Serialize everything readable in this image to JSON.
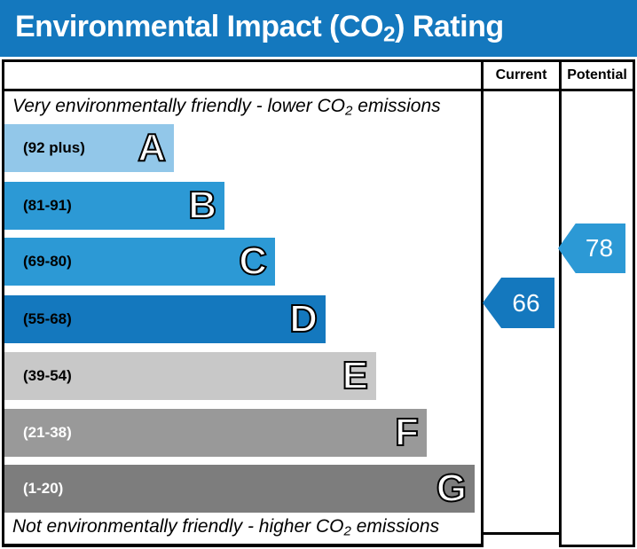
{
  "ui": {
    "header_blue": "#1478BE",
    "border_black": "#000000"
  },
  "title": {
    "prefix": "Environmental Impact (CO",
    "sub": "2",
    "suffix": ") Rating"
  },
  "columns": {
    "current": "Current",
    "potential": "Potential"
  },
  "captions": {
    "top": {
      "prefix": "Very environmentally friendly - lower CO",
      "sub": "2",
      "suffix": " emissions"
    },
    "bottom": {
      "prefix": "Not environmentally friendly - higher CO",
      "sub": "2",
      "suffix": " emissions"
    }
  },
  "bands": [
    {
      "letter": "A",
      "range": "(92 plus)",
      "color": "#92C7E9",
      "text_color": "#000000"
    },
    {
      "letter": "B",
      "range": "(81-91)",
      "color": "#2C99D5",
      "text_color": "#000000"
    },
    {
      "letter": "C",
      "range": "(69-80)",
      "color": "#2C99D5",
      "text_color": "#000000"
    },
    {
      "letter": "D",
      "range": "(55-68)",
      "color": "#1478BE",
      "text_color": "#000000"
    },
    {
      "letter": "E",
      "range": "(39-54)",
      "color": "#C8C8C8",
      "text_color": "#000000"
    },
    {
      "letter": "F",
      "range": "(21-38)",
      "color": "#999999",
      "text_color": "#FFFFFF"
    },
    {
      "letter": "G",
      "range": "(1-20)",
      "color": "#7D7D7D",
      "text_color": "#FFFFFF"
    }
  ],
  "ratings": {
    "current": {
      "value": "66",
      "band": "D",
      "color": "#1478BE"
    },
    "potential": {
      "value": "78",
      "band": "C",
      "color": "#2C99D5"
    }
  },
  "chart_data": {
    "type": "bar",
    "title": "Environmental Impact (CO2) Rating",
    "categories": [
      "A",
      "B",
      "C",
      "D",
      "E",
      "F",
      "G"
    ],
    "band_ranges": [
      "92 plus",
      "81-91",
      "69-80",
      "55-68",
      "39-54",
      "21-38",
      "1-20"
    ],
    "band_colors": [
      "#92C7E9",
      "#2C99D5",
      "#2C99D5",
      "#1478BE",
      "#C8C8C8",
      "#999999",
      "#7D7D7D"
    ],
    "series": [
      {
        "name": "Current",
        "values": [
          66
        ],
        "band": "D",
        "color": "#1478BE"
      },
      {
        "name": "Potential",
        "values": [
          78
        ],
        "band": "C",
        "color": "#2C99D5"
      }
    ],
    "scale": [
      1,
      100
    ],
    "legend_position": "top-right-columns",
    "annotations": [
      "Very environmentally friendly - lower CO2 emissions",
      "Not environmentally friendly - higher CO2 emissions"
    ]
  }
}
